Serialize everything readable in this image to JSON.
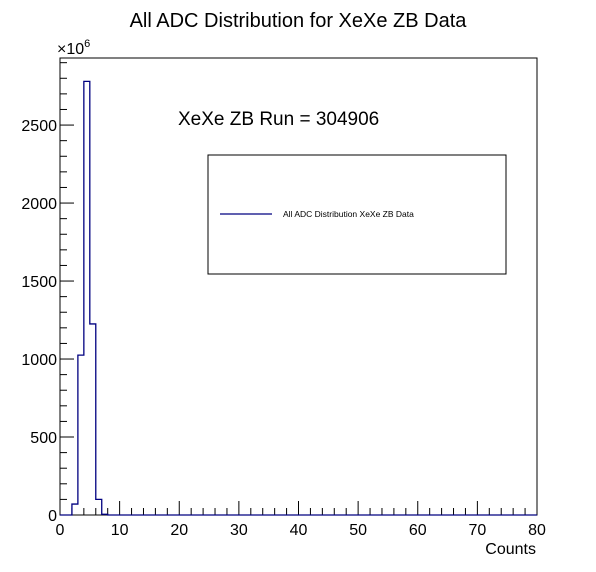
{
  "chart_data": {
    "type": "histogram",
    "title": "All ADC Distribution for XeXe ZB Data",
    "xlabel": "Counts",
    "ylabel": "",
    "y_multiplier": "×10",
    "y_multiplier_exponent": "6",
    "xlim": [
      0,
      80
    ],
    "ylim": [
      0,
      2930
    ],
    "x_ticks": [
      0,
      10,
      20,
      30,
      40,
      50,
      60,
      70,
      80
    ],
    "y_ticks": [
      0,
      500,
      1000,
      1500,
      2000,
      2500
    ],
    "bin_width": 1,
    "bins": [
      {
        "x0": 0,
        "x1": 1,
        "value": 0
      },
      {
        "x0": 1,
        "x1": 2,
        "value": 0
      },
      {
        "x0": 2,
        "x1": 3,
        "value": 70
      },
      {
        "x0": 3,
        "x1": 4,
        "value": 1025
      },
      {
        "x0": 4,
        "x1": 5,
        "value": 2780
      },
      {
        "x0": 5,
        "x1": 6,
        "value": 1225
      },
      {
        "x0": 6,
        "x1": 7,
        "value": 100
      },
      {
        "x0": 7,
        "x1": 8,
        "value": 5
      },
      {
        "x0": 8,
        "x1": 80,
        "value": 0
      }
    ],
    "line_color": "#000080",
    "grid": false,
    "legend": {
      "placement": "top-right",
      "entries": [
        "All ADC Distribution XeXe ZB Data"
      ]
    },
    "annotation": "XeXe ZB Run = 304906"
  }
}
